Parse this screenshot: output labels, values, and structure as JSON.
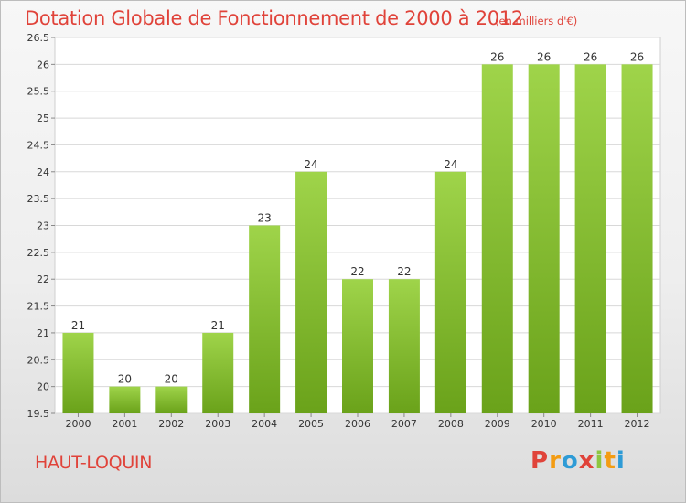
{
  "title": "Dotation Globale de Fonctionnement de 2000 à 2012",
  "subtitle": "(en milliers d'€)",
  "commune": "HAUT-LOQUIN",
  "logo": {
    "letters": [
      "P",
      "r",
      "o",
      "x",
      "i",
      "t",
      "i"
    ],
    "colors": [
      "#e0433a",
      "#f39c12",
      "#2e9bd6",
      "#e0433a",
      "#8dc63f",
      "#f39c12",
      "#2e9bd6"
    ]
  },
  "chart_data": {
    "type": "bar",
    "categories": [
      "2000",
      "2001",
      "2002",
      "2003",
      "2004",
      "2005",
      "2006",
      "2007",
      "2008",
      "2009",
      "2010",
      "2011",
      "2012"
    ],
    "values": [
      21,
      20,
      20,
      21,
      23,
      24,
      22,
      22,
      24,
      26,
      26,
      26,
      26
    ],
    "value_labels": [
      "21",
      "20",
      "20",
      "21",
      "23",
      "24",
      "22",
      "22",
      "24",
      "26",
      "26",
      "26",
      "26"
    ],
    "ylim": [
      19.5,
      26.5
    ],
    "yticks": [
      "19.5",
      "20",
      "20.5",
      "21",
      "21.5",
      "22",
      "22.5",
      "23",
      "23.5",
      "24",
      "24.5",
      "25",
      "25.5",
      "26",
      "26.5"
    ],
    "grid": true,
    "bar_color_top": "#9fd44a",
    "bar_color_bottom": "#6aa21a"
  }
}
